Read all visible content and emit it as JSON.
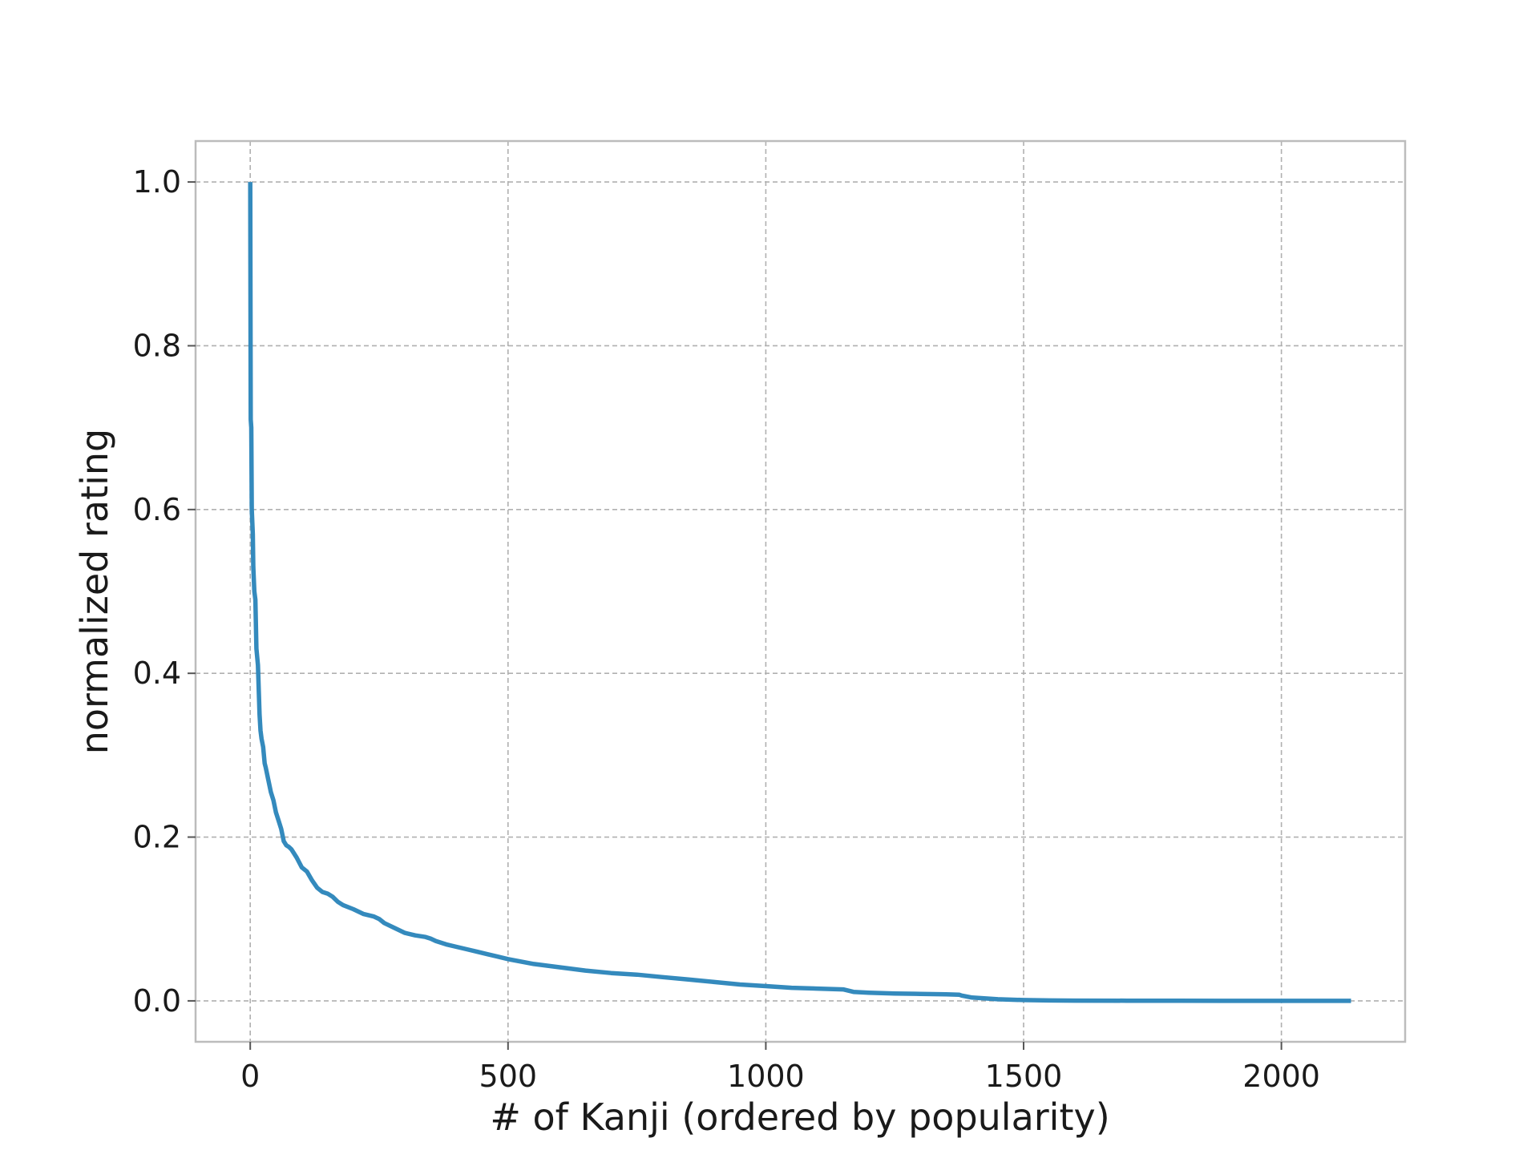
{
  "chart_data": {
    "type": "line",
    "title": "",
    "xlabel": "# of Kanji (ordered by popularity)",
    "ylabel": "normalized rating",
    "xlim": [
      -106,
      2240
    ],
    "ylim": [
      -0.05,
      1.05
    ],
    "x_ticks": [
      0,
      500,
      1000,
      1500,
      2000
    ],
    "y_ticks": [
      0.0,
      0.2,
      0.4,
      0.6,
      0.8,
      1.0
    ],
    "x_tick_labels": [
      "0",
      "500",
      "1000",
      "1500",
      "2000"
    ],
    "y_tick_labels": [
      "0.0",
      "0.2",
      "0.4",
      "0.6",
      "0.8",
      "1.0"
    ],
    "grid": true,
    "line_color": "#348abd",
    "series": [
      {
        "x": [
          0,
          1,
          2,
          3,
          5,
          6,
          8,
          10,
          12,
          15,
          18,
          20,
          22,
          25,
          28,
          30,
          35,
          40,
          45,
          50,
          55,
          60,
          65,
          70,
          75,
          80,
          90,
          100,
          110,
          120,
          130,
          140,
          150,
          160,
          170,
          180,
          200,
          220,
          240,
          250,
          260,
          280,
          300,
          320,
          340,
          350,
          360,
          380,
          400,
          420,
          440,
          460,
          480,
          500,
          550,
          600,
          650,
          700,
          750,
          800,
          850,
          900,
          950,
          1000,
          1050,
          1100,
          1150,
          1170,
          1200,
          1250,
          1300,
          1350,
          1375,
          1380,
          1400,
          1450,
          1500,
          1550,
          1600,
          1700,
          1800,
          1900,
          2000,
          2100,
          2135
        ],
        "y": [
          1.0,
          0.71,
          0.7,
          0.6,
          0.57,
          0.53,
          0.5,
          0.49,
          0.43,
          0.41,
          0.35,
          0.33,
          0.32,
          0.31,
          0.29,
          0.285,
          0.27,
          0.255,
          0.245,
          0.23,
          0.22,
          0.21,
          0.195,
          0.19,
          0.188,
          0.185,
          0.175,
          0.163,
          0.158,
          0.147,
          0.138,
          0.133,
          0.131,
          0.127,
          0.121,
          0.117,
          0.112,
          0.106,
          0.103,
          0.1,
          0.095,
          0.089,
          0.083,
          0.08,
          0.078,
          0.076,
          0.073,
          0.069,
          0.066,
          0.063,
          0.06,
          0.057,
          0.054,
          0.051,
          0.045,
          0.041,
          0.037,
          0.034,
          0.032,
          0.029,
          0.026,
          0.023,
          0.02,
          0.018,
          0.016,
          0.015,
          0.014,
          0.011,
          0.01,
          0.009,
          0.0085,
          0.008,
          0.0075,
          0.0065,
          0.004,
          0.002,
          0.001,
          0.0005,
          0.0003,
          0.0002,
          0.0001,
          0.0,
          0.0,
          0.0,
          0.0
        ]
      }
    ]
  }
}
